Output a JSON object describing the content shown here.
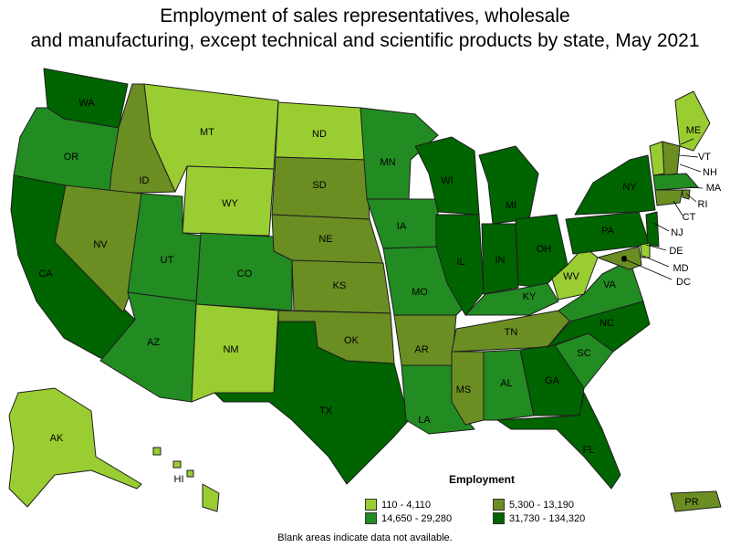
{
  "title": {
    "line1": "Employment of sales representatives, wholesale",
    "line2": "and manufacturing, except technical and scientific products by state, May 2021"
  },
  "legend": {
    "title": "Employment",
    "bins": [
      {
        "label": "110 - 4,110",
        "color": "#9acd32"
      },
      {
        "label": "5,300 - 13,190",
        "color": "#6b8e23"
      },
      {
        "label": "14,650 - 29,280",
        "color": "#228b22"
      },
      {
        "label": "31,730 - 134,320",
        "color": "#006400"
      }
    ]
  },
  "note": "Blank areas indicate data not available.",
  "states": {
    "WA": {
      "label": "WA",
      "bin": 3
    },
    "OR": {
      "label": "OR",
      "bin": 2
    },
    "CA": {
      "label": "CA",
      "bin": 3
    },
    "ID": {
      "label": "ID",
      "bin": 1
    },
    "NV": {
      "label": "NV",
      "bin": 1
    },
    "MT": {
      "label": "MT",
      "bin": 0
    },
    "WY": {
      "label": "WY",
      "bin": 0
    },
    "UT": {
      "label": "UT",
      "bin": 2
    },
    "AZ": {
      "label": "AZ",
      "bin": 2
    },
    "CO": {
      "label": "CO",
      "bin": 2
    },
    "NM": {
      "label": "NM",
      "bin": 0
    },
    "ND": {
      "label": "ND",
      "bin": 0
    },
    "SD": {
      "label": "SD",
      "bin": 1
    },
    "NE": {
      "label": "NE",
      "bin": 1
    },
    "KS": {
      "label": "KS",
      "bin": 1
    },
    "OK": {
      "label": "OK",
      "bin": 1
    },
    "TX": {
      "label": "TX",
      "bin": 3
    },
    "MN": {
      "label": "MN",
      "bin": 2
    },
    "IA": {
      "label": "IA",
      "bin": 2
    },
    "MO": {
      "label": "MO",
      "bin": 2
    },
    "AR": {
      "label": "AR",
      "bin": 1
    },
    "LA": {
      "label": "LA",
      "bin": 2
    },
    "WI": {
      "label": "WI",
      "bin": 3
    },
    "IL": {
      "label": "IL",
      "bin": 3
    },
    "MI": {
      "label": "MI",
      "bin": 3
    },
    "IN": {
      "label": "IN",
      "bin": 3
    },
    "OH": {
      "label": "OH",
      "bin": 3
    },
    "KY": {
      "label": "KY",
      "bin": 2
    },
    "TN": {
      "label": "TN",
      "bin": 1
    },
    "MS": {
      "label": "MS",
      "bin": 1
    },
    "AL": {
      "label": "AL",
      "bin": 2
    },
    "GA": {
      "label": "GA",
      "bin": 3
    },
    "FL": {
      "label": "FL",
      "bin": 3
    },
    "SC": {
      "label": "SC",
      "bin": 2
    },
    "NC": {
      "label": "NC",
      "bin": 3
    },
    "VA": {
      "label": "VA",
      "bin": 2
    },
    "WV": {
      "label": "WV",
      "bin": 0
    },
    "PA": {
      "label": "PA",
      "bin": 3
    },
    "NY": {
      "label": "NY",
      "bin": 3
    },
    "ME": {
      "label": "ME",
      "bin": 0
    },
    "VT": {
      "label": "VT",
      "bin": 0
    },
    "NH": {
      "label": "NH",
      "bin": 1
    },
    "MA": {
      "label": "MA",
      "bin": 2
    },
    "RI": {
      "label": "RI",
      "bin": 1
    },
    "CT": {
      "label": "CT",
      "bin": 1
    },
    "NJ": {
      "label": "NJ",
      "bin": 3
    },
    "DE": {
      "label": "DE",
      "bin": 0
    },
    "MD": {
      "label": "MD",
      "bin": 1
    },
    "DC": {
      "label": "DC",
      "bin": 3
    },
    "AK": {
      "label": "AK",
      "bin": 0
    },
    "HI": {
      "label": "HI",
      "bin": 0
    },
    "PR": {
      "label": "PR",
      "bin": 1
    }
  }
}
